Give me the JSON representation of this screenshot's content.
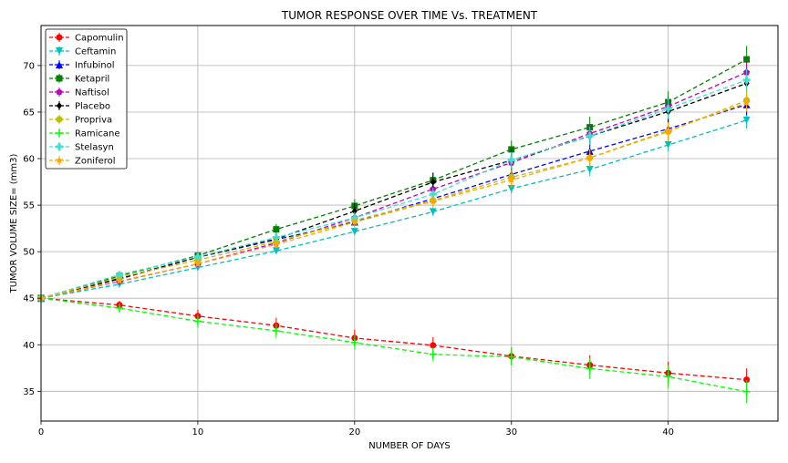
{
  "chart_data": {
    "type": "line",
    "title": "TUMOR RESPONSE OVER TIME Vs. TREATMENT",
    "xlabel": "NUMBER OF DAYS",
    "ylabel": "TUMOR VOLUME SIZE= (mm3)",
    "xlim": [
      0,
      47
    ],
    "ylim": [
      31.8,
      74.3
    ],
    "xticks": [
      0,
      10,
      20,
      30,
      40
    ],
    "yticks": [
      35,
      40,
      45,
      50,
      55,
      60,
      65,
      70
    ],
    "grid": true,
    "legend_position": "top-left",
    "x": [
      0,
      5,
      10,
      15,
      20,
      25,
      30,
      35,
      40,
      45
    ],
    "series": [
      {
        "name": "Capomulin",
        "color": "#ff0000",
        "marker": "circle",
        "values": [
          45.0,
          44.27,
          43.08,
          42.06,
          40.72,
          39.94,
          38.77,
          37.82,
          36.96,
          36.24
        ],
        "errors": [
          0.0,
          0.45,
          0.7,
          0.84,
          0.91,
          0.88,
          0.93,
          1.05,
          1.22,
          1.22
        ]
      },
      {
        "name": "Ceftamin",
        "color": "#00bfbf",
        "marker": "triangle-down",
        "values": [
          45.0,
          46.5,
          48.29,
          50.09,
          52.16,
          54.29,
          56.77,
          58.83,
          61.47,
          64.13
        ],
        "errors": [
          0.0,
          0.16,
          0.24,
          0.33,
          0.36,
          0.44,
          0.49,
          0.69,
          0.71,
          0.88
        ]
      },
      {
        "name": "Infubinol",
        "color": "#0000ff",
        "marker": "triangle-up",
        "values": [
          45.0,
          47.06,
          49.4,
          51.3,
          53.2,
          55.7,
          58.3,
          60.8,
          63.2,
          65.8
        ],
        "errors": [
          0.0,
          0.24,
          0.28,
          0.36,
          0.48,
          0.55,
          0.63,
          0.98,
          1.06,
          1.14
        ]
      },
      {
        "name": "Ketapril",
        "color": "#008000",
        "marker": "square",
        "values": [
          45.0,
          47.39,
          49.58,
          52.4,
          54.92,
          57.68,
          60.99,
          63.37,
          66.07,
          70.66
        ],
        "errors": [
          0.0,
          0.26,
          0.36,
          0.58,
          0.73,
          0.76,
          0.93,
          1.13,
          1.16,
          1.45
        ]
      },
      {
        "name": "Naftisol",
        "color": "#bf00bf",
        "marker": "pentagon",
        "values": [
          45.0,
          46.8,
          48.69,
          50.93,
          53.64,
          56.73,
          59.56,
          62.69,
          65.6,
          69.27
        ],
        "errors": [
          0.0,
          0.2,
          0.35,
          0.44,
          0.6,
          0.81,
          0.98,
          1.0,
          1.0,
          1.1
        ]
      },
      {
        "name": "Placebo",
        "color": "#000000",
        "marker": "diamond",
        "values": [
          45.0,
          47.13,
          49.42,
          51.36,
          54.36,
          57.48,
          59.81,
          62.42,
          65.05,
          68.08
        ],
        "errors": [
          0.0,
          0.22,
          0.4,
          0.61,
          0.84,
          1.03,
          1.22,
          1.01,
          1.2,
          1.0
        ]
      },
      {
        "name": "Propriva",
        "color": "#bfbf00",
        "marker": "octagon",
        "values": [
          45.0,
          47.25,
          49.1,
          51.07,
          53.35,
          55.5,
          58.0,
          60.08,
          62.9,
          66.26
        ],
        "errors": [
          0.0,
          0.23,
          0.38,
          0.47,
          0.56,
          0.74,
          0.9,
          0.95,
          1.01,
          1.11
        ]
      },
      {
        "name": "Ramicane",
        "color": "#00ff00",
        "marker": "plus",
        "values": [
          45.0,
          43.94,
          42.53,
          41.5,
          40.24,
          38.97,
          38.7,
          37.45,
          36.57,
          34.96
        ],
        "errors": [
          0.0,
          0.48,
          0.72,
          0.77,
          0.79,
          0.75,
          0.93,
          1.13,
          1.22,
          1.23
        ]
      },
      {
        "name": "Stelasyn",
        "color": "#40e0d0",
        "marker": "plus-filled",
        "values": [
          45.0,
          47.53,
          49.46,
          51.53,
          53.64,
          56.17,
          59.83,
          62.44,
          65.36,
          68.44
        ],
        "errors": [
          0.0,
          0.24,
          0.43,
          0.49,
          0.62,
          0.74,
          0.9,
          1.0,
          1.1,
          1.17
        ]
      },
      {
        "name": "Zoniferol",
        "color": "#ffa500",
        "marker": "star",
        "values": [
          45.0,
          46.85,
          48.69,
          50.78,
          53.17,
          55.43,
          57.71,
          60.09,
          63.0,
          66.0
        ],
        "errors": [
          0.0,
          0.19,
          0.26,
          0.35,
          0.44,
          0.6,
          0.8,
          0.88,
          0.89,
          0.95
        ]
      }
    ]
  }
}
